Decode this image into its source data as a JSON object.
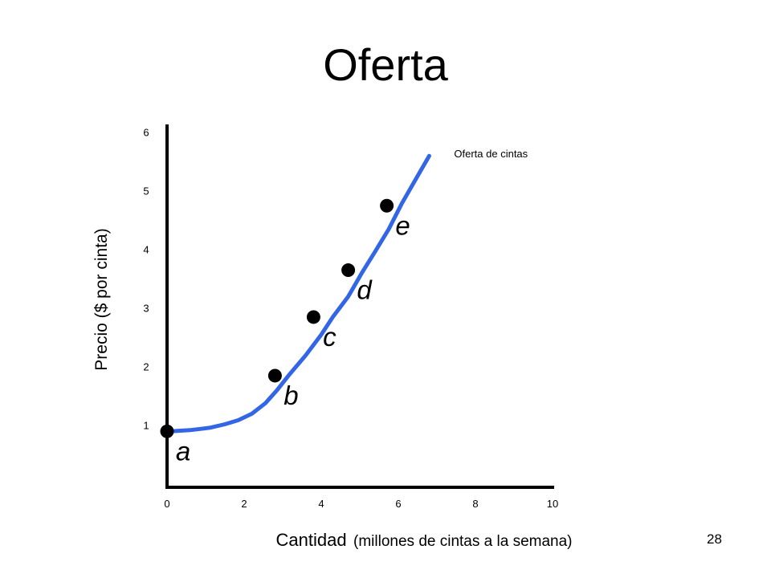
{
  "slide": {
    "title": "Oferta",
    "page_number": "28"
  },
  "chart_data": {
    "type": "line",
    "title": "Oferta",
    "xlabel": "Cantidad",
    "xlabel_note": "(millones de cintas a la semana)",
    "ylabel": "Precio  ($ por cinta)",
    "xlim": [
      0,
      10
    ],
    "ylim": [
      0,
      6
    ],
    "x_ticks": [
      0,
      2,
      4,
      6,
      8,
      10
    ],
    "y_ticks": [
      1,
      2,
      3,
      4,
      5,
      6
    ],
    "grid": false,
    "series": [
      {
        "name": "Oferta de cintas",
        "color": "#3366e6",
        "x": [
          0.1,
          0.6,
          1.1,
          1.5,
          1.85,
          2.2,
          2.55,
          2.85,
          3.15,
          3.6,
          4.0,
          4.3,
          4.7,
          5.05,
          5.4,
          5.75,
          6.1,
          6.45,
          6.8
        ],
        "y": [
          0.9,
          0.92,
          0.96,
          1.02,
          1.09,
          1.2,
          1.38,
          1.6,
          1.85,
          2.2,
          2.55,
          2.85,
          3.2,
          3.6,
          3.97,
          4.35,
          4.8,
          5.2,
          5.6
        ]
      }
    ],
    "points": [
      {
        "label": "a",
        "x": 0.0,
        "y": 0.9
      },
      {
        "label": "b",
        "x": 2.8,
        "y": 1.85
      },
      {
        "label": "c",
        "x": 3.8,
        "y": 2.85
      },
      {
        "label": "d",
        "x": 4.7,
        "y": 3.65
      },
      {
        "label": "e",
        "x": 5.7,
        "y": 4.75
      }
    ],
    "point_color": "#000000",
    "axis_color": "#000000"
  }
}
